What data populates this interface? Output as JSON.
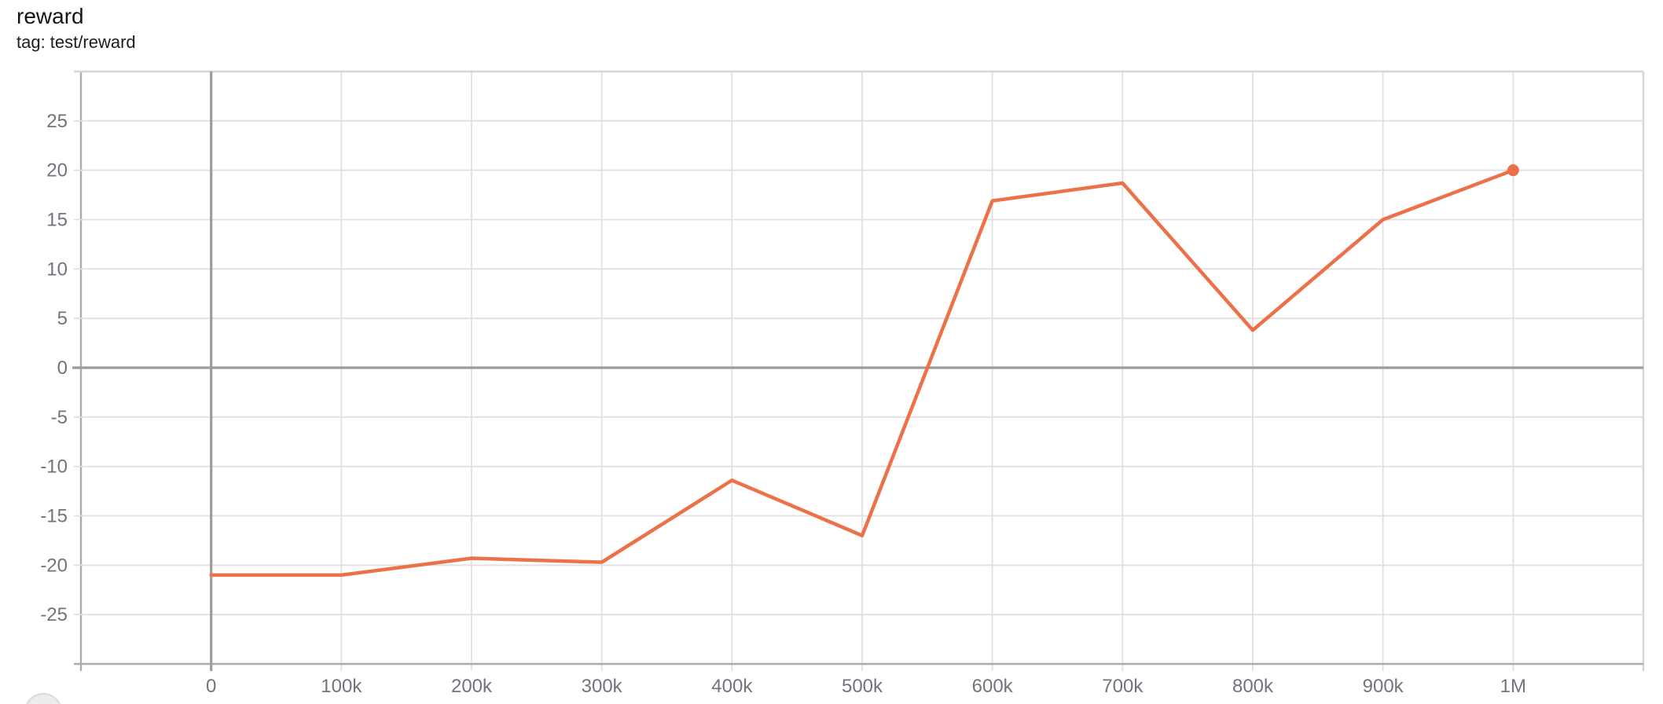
{
  "card": {
    "title": "reward",
    "subtitle": "tag: test/reward"
  },
  "colors": {
    "line": "#ec7048",
    "grid": "#e0e0e0",
    "boundary_dark": "#ababab",
    "boundary_light": "#d6d6d6",
    "zero_axis": "#9c9c9c",
    "tick_label": "#73737b"
  },
  "chart_data": {
    "type": "line",
    "title": "reward",
    "tag": "test/reward",
    "grid": true,
    "xlim": [
      -100000,
      1100000
    ],
    "ylim": [
      -30,
      30
    ],
    "x_grid_step": 100000,
    "y_grid_step": 5,
    "x_ticks": [
      {
        "value": 0,
        "label": "0"
      },
      {
        "value": 100000,
        "label": "100k"
      },
      {
        "value": 200000,
        "label": "200k"
      },
      {
        "value": 300000,
        "label": "300k"
      },
      {
        "value": 400000,
        "label": "400k"
      },
      {
        "value": 500000,
        "label": "500k"
      },
      {
        "value": 600000,
        "label": "600k"
      },
      {
        "value": 700000,
        "label": "700k"
      },
      {
        "value": 800000,
        "label": "800k"
      },
      {
        "value": 900000,
        "label": "900k"
      },
      {
        "value": 1000000,
        "label": "1M"
      }
    ],
    "y_ticks": [
      25,
      20,
      15,
      10,
      5,
      0,
      -5,
      -10,
      -15,
      -20,
      -25
    ],
    "series": [
      {
        "name": "test/reward",
        "end_marker": true,
        "x": [
          0,
          100000,
          200000,
          300000,
          400000,
          500000,
          600000,
          700000,
          800000,
          900000,
          1000000
        ],
        "y": [
          -21.0,
          -21.0,
          -19.3,
          -19.7,
          -11.4,
          -17.0,
          16.9,
          18.7,
          3.8,
          15.0,
          20.0
        ]
      }
    ]
  }
}
